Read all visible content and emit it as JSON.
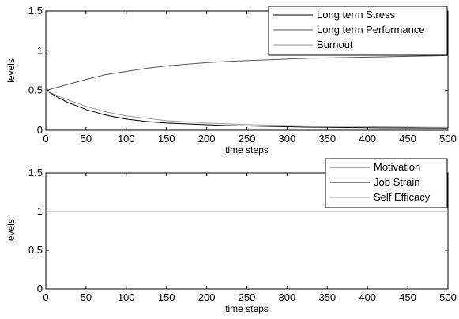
{
  "chart_data": [
    {
      "type": "line",
      "xlabel": "time steps",
      "ylabel": "levels",
      "xlim": [
        0,
        500
      ],
      "ylim": [
        0,
        1.5
      ],
      "xticks": [
        0,
        50,
        100,
        150,
        200,
        250,
        300,
        350,
        400,
        450,
        500
      ],
      "yticks": [
        0,
        0.5,
        1,
        1.5
      ],
      "tick_labels_x": [
        "0",
        "50",
        "100",
        "150",
        "200",
        "250",
        "300",
        "350",
        "400",
        "450",
        "500"
      ],
      "tick_labels_y": [
        "0",
        "0.5",
        "1",
        "1.5"
      ],
      "grid": false,
      "legend_position": "top-right",
      "x": [
        0,
        25,
        50,
        75,
        100,
        125,
        150,
        175,
        200,
        225,
        250,
        275,
        300,
        325,
        350,
        375,
        400,
        425,
        450,
        475,
        500
      ],
      "series": [
        {
          "name": "Long term Stress",
          "color": "#000000",
          "values": [
            0.5,
            0.36,
            0.26,
            0.19,
            0.14,
            0.11,
            0.09,
            0.08,
            0.07,
            0.06,
            0.055,
            0.05,
            0.045,
            0.04,
            0.038,
            0.035,
            0.033,
            0.031,
            0.03,
            0.029,
            0.028
          ]
        },
        {
          "name": "Long term Performance",
          "color": "#555555",
          "values": [
            0.5,
            0.57,
            0.64,
            0.7,
            0.74,
            0.78,
            0.81,
            0.83,
            0.85,
            0.865,
            0.875,
            0.885,
            0.895,
            0.905,
            0.91,
            0.915,
            0.92,
            0.925,
            0.93,
            0.935,
            0.94
          ]
        },
        {
          "name": "Burnout",
          "color": "#9a9a9a",
          "values": [
            0.5,
            0.39,
            0.3,
            0.23,
            0.18,
            0.15,
            0.12,
            0.105,
            0.09,
            0.08,
            0.072,
            0.066,
            0.06,
            0.056,
            0.052,
            0.049,
            0.046,
            0.043,
            0.04,
            0.038,
            0.036
          ]
        }
      ]
    },
    {
      "type": "line",
      "xlabel": "time steps",
      "ylabel": "levels",
      "xlim": [
        0,
        500
      ],
      "ylim": [
        0,
        1.5
      ],
      "xticks": [
        0,
        50,
        100,
        150,
        200,
        250,
        300,
        350,
        400,
        450,
        500
      ],
      "yticks": [
        0,
        0.5,
        1,
        1.5
      ],
      "tick_labels_x": [
        "0",
        "50",
        "100",
        "150",
        "200",
        "250",
        "300",
        "350",
        "400",
        "450",
        "500"
      ],
      "tick_labels_y": [
        "0",
        "0.5",
        "1",
        "1.5"
      ],
      "grid": false,
      "legend_position": "top-right",
      "x": [
        0,
        500
      ],
      "series": [
        {
          "name": "Motivation",
          "color": "#555555",
          "values": [
            1,
            1
          ]
        },
        {
          "name": "Job Strain",
          "color": "#000000",
          "values": [
            1,
            1
          ]
        },
        {
          "name": "Self Efficacy",
          "color": "#9a9a9a",
          "values": [
            1,
            1
          ]
        }
      ]
    }
  ]
}
